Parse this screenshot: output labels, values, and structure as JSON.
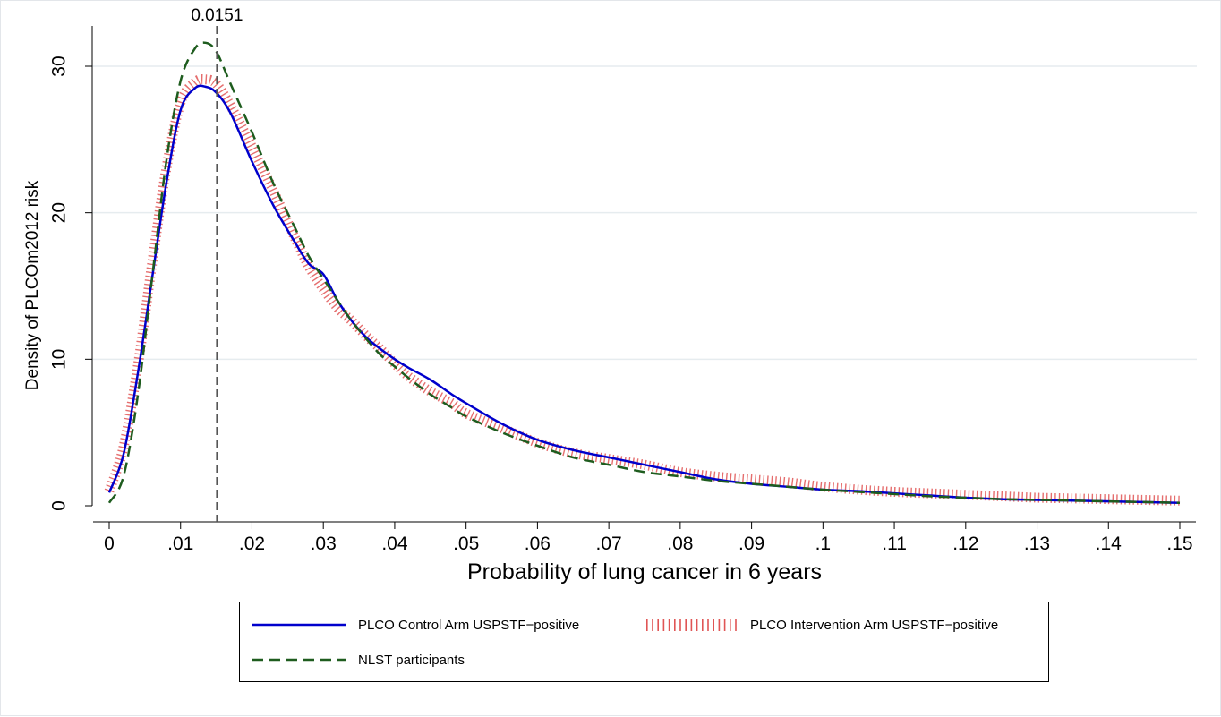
{
  "chart_data": {
    "type": "line",
    "xlabel": "Probability of lung cancer in 6 years",
    "ylabel": "Density of PLCOm2012 risk",
    "xlim": [
      0,
      0.15
    ],
    "ylim": [
      0,
      32
    ],
    "x_ticks": [
      0,
      0.01,
      0.02,
      0.03,
      0.04,
      0.05,
      0.06,
      0.07,
      0.08,
      0.09,
      0.1,
      0.11,
      0.12,
      0.13,
      0.14,
      0.15
    ],
    "x_tick_labels": [
      "0",
      ".01",
      ".02",
      ".03",
      ".04",
      ".05",
      ".06",
      ".07",
      ".08",
      ".09",
      ".1",
      ".11",
      ".12",
      ".13",
      ".14",
      ".15"
    ],
    "y_ticks": [
      0,
      10,
      20,
      30
    ],
    "y_tick_labels": [
      "0",
      "10",
      "20",
      "30"
    ],
    "grid": "horizontal",
    "reference_line": {
      "x": 0.0151,
      "label": "0.0151",
      "style": "dashed",
      "color": "#555555"
    },
    "legend_position": "bottom",
    "series": [
      {
        "name": "PLCO Control Arm USPSTF−positive",
        "color": "#0000cc",
        "style": "solid",
        "x": [
          0,
          0.002,
          0.004,
          0.006,
          0.008,
          0.01,
          0.012,
          0.0135,
          0.015,
          0.017,
          0.02,
          0.023,
          0.026,
          0.028,
          0.03,
          0.032,
          0.034,
          0.036,
          0.038,
          0.04,
          0.042,
          0.045,
          0.048,
          0.05,
          0.055,
          0.06,
          0.065,
          0.07,
          0.075,
          0.08,
          0.085,
          0.09,
          0.095,
          0.1,
          0.105,
          0.11,
          0.115,
          0.12,
          0.125,
          0.13,
          0.135,
          0.14,
          0.145,
          0.15
        ],
        "y": [
          0.9,
          3.5,
          9.0,
          15.5,
          22.0,
          27.0,
          28.5,
          28.6,
          28.2,
          26.8,
          23.5,
          20.5,
          18.0,
          16.5,
          15.8,
          14.0,
          12.6,
          11.5,
          10.7,
          10.0,
          9.4,
          8.6,
          7.6,
          7.0,
          5.6,
          4.5,
          3.8,
          3.3,
          2.8,
          2.3,
          1.8,
          1.5,
          1.3,
          1.1,
          1.0,
          0.85,
          0.7,
          0.55,
          0.45,
          0.4,
          0.35,
          0.3,
          0.25,
          0.2
        ]
      },
      {
        "name": "PLCO Intervention Arm USPSTF−positive",
        "color": "#e05555",
        "style": "hatched",
        "x": [
          0,
          0.002,
          0.004,
          0.006,
          0.008,
          0.01,
          0.012,
          0.0135,
          0.015,
          0.017,
          0.02,
          0.023,
          0.026,
          0.028,
          0.03,
          0.032,
          0.034,
          0.036,
          0.038,
          0.04,
          0.042,
          0.045,
          0.048,
          0.05,
          0.055,
          0.06,
          0.065,
          0.07,
          0.075,
          0.08,
          0.085,
          0.09,
          0.095,
          0.1,
          0.105,
          0.11,
          0.115,
          0.12,
          0.125,
          0.13,
          0.135,
          0.14,
          0.145,
          0.15
        ],
        "y": [
          1.0,
          4.0,
          9.5,
          16.5,
          23.0,
          27.5,
          28.9,
          29.1,
          28.8,
          27.3,
          24.5,
          21.5,
          18.3,
          16.3,
          14.8,
          13.5,
          12.6,
          11.6,
          10.7,
          9.7,
          8.8,
          7.8,
          7.0,
          6.3,
          5.3,
          4.3,
          3.6,
          3.2,
          2.8,
          2.3,
          2.0,
          1.8,
          1.6,
          1.3,
          1.1,
          0.95,
          0.85,
          0.75,
          0.65,
          0.55,
          0.5,
          0.45,
          0.4,
          0.35
        ]
      },
      {
        "name": "NLST participants",
        "color": "#1e5c1e",
        "style": "dashed",
        "x": [
          0,
          0.002,
          0.004,
          0.006,
          0.008,
          0.01,
          0.012,
          0.0135,
          0.015,
          0.017,
          0.02,
          0.023,
          0.026,
          0.028,
          0.03,
          0.032,
          0.034,
          0.036,
          0.038,
          0.04,
          0.042,
          0.045,
          0.048,
          0.05,
          0.055,
          0.06,
          0.065,
          0.07,
          0.075,
          0.08,
          0.085,
          0.09,
          0.095,
          0.1,
          0.105,
          0.11,
          0.115,
          0.12,
          0.125,
          0.13,
          0.135,
          0.14,
          0.145,
          0.15
        ],
        "y": [
          0.2,
          2.0,
          7.5,
          15.5,
          23.5,
          29.0,
          31.2,
          31.6,
          31.0,
          28.8,
          25.5,
          22.0,
          19.0,
          17.0,
          15.5,
          14.0,
          12.6,
          11.4,
          10.3,
          9.5,
          8.7,
          7.6,
          6.7,
          6.1,
          5.0,
          4.1,
          3.3,
          2.8,
          2.3,
          2.0,
          1.7,
          1.5,
          1.3,
          1.1,
          0.95,
          0.8,
          0.65,
          0.55,
          0.45,
          0.4,
          0.35,
          0.3,
          0.25,
          0.2
        ]
      }
    ]
  }
}
